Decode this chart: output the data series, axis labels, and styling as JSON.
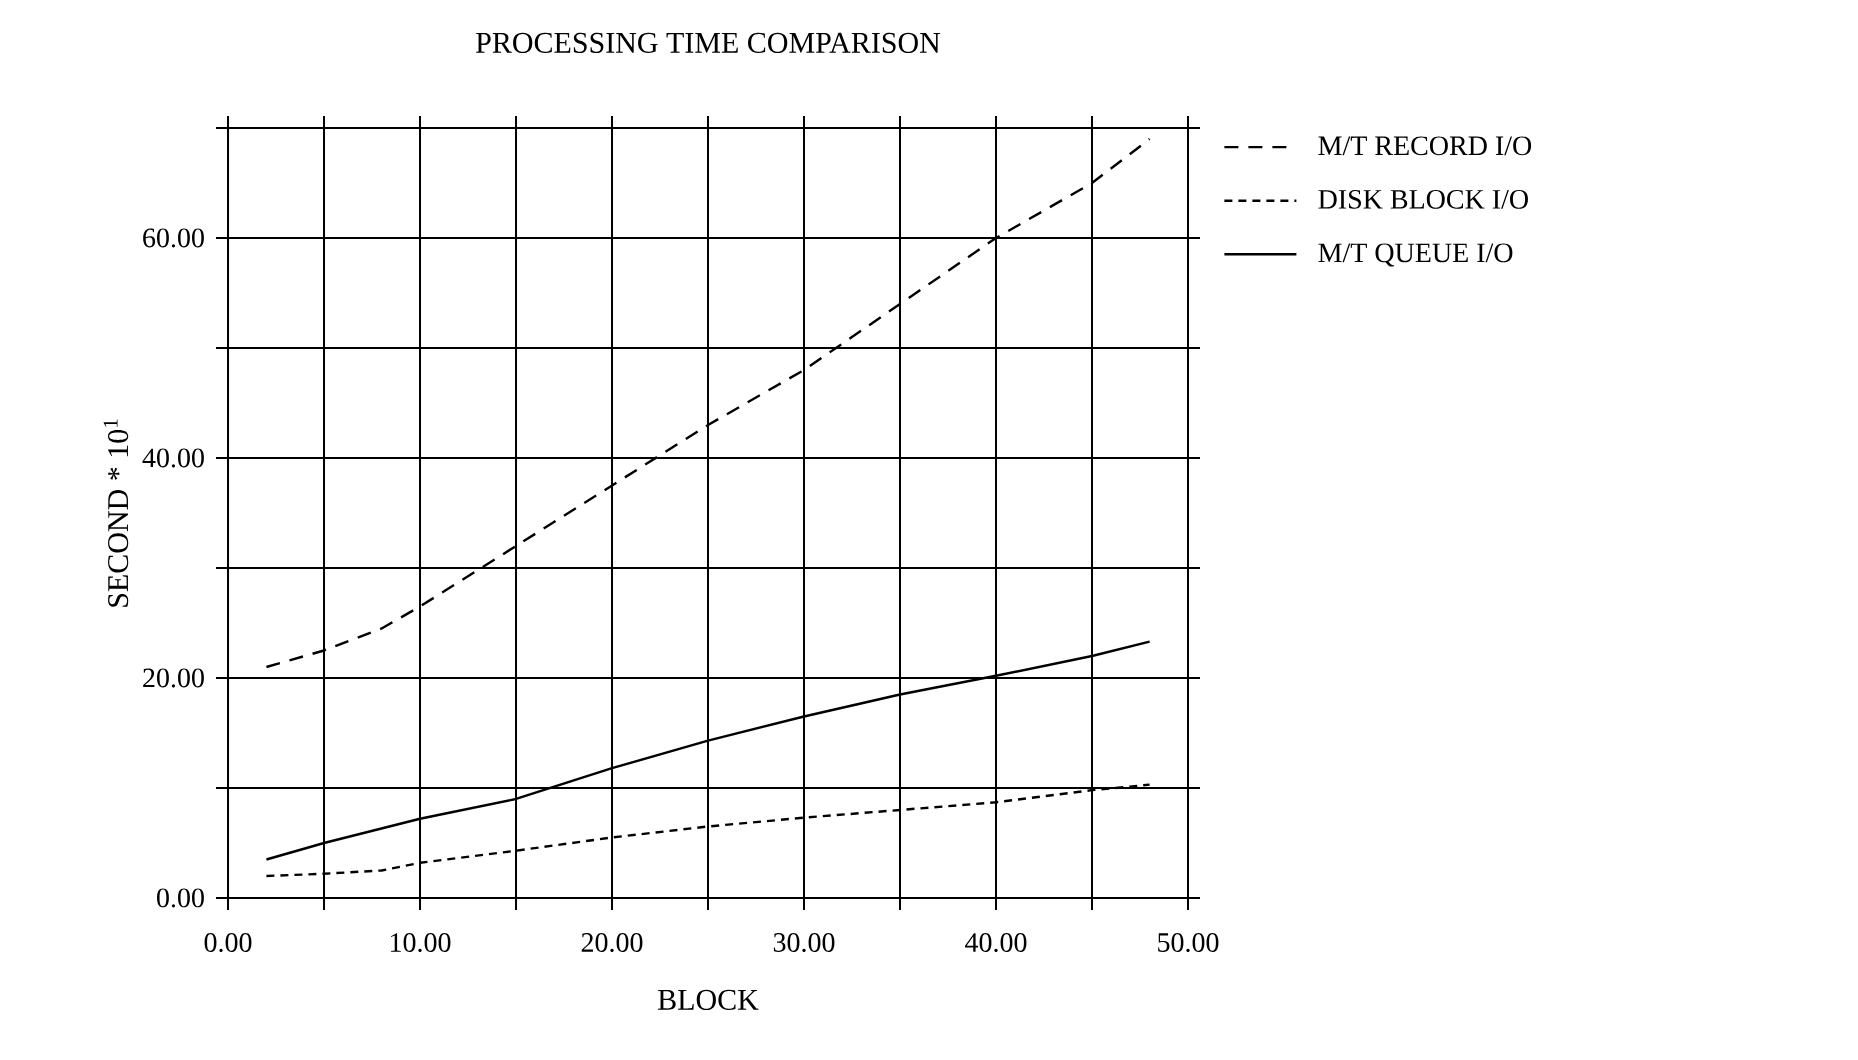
{
  "chart_data": {
    "type": "line",
    "title": "PROCESSING TIME COMPARISON",
    "xlabel": "BLOCK",
    "ylabel": "SECOND * 10$^{1}$",
    "xlim": [
      0,
      50
    ],
    "ylim": [
      0,
      70
    ],
    "xticks": [
      {
        "value": 0,
        "label": "0.00"
      },
      {
        "value": 5,
        "label": null
      },
      {
        "value": 10,
        "label": "10.00"
      },
      {
        "value": 15,
        "label": null
      },
      {
        "value": 20,
        "label": "20.00"
      },
      {
        "value": 25,
        "label": null
      },
      {
        "value": 30,
        "label": "30.00"
      },
      {
        "value": 35,
        "label": null
      },
      {
        "value": 40,
        "label": "40.00"
      },
      {
        "value": 45,
        "label": null
      },
      {
        "value": 50,
        "label": "50.00"
      }
    ],
    "yticks": [
      {
        "value": 0,
        "label": "0.00"
      },
      {
        "value": 10,
        "label": null
      },
      {
        "value": 20,
        "label": "20.00"
      },
      {
        "value": 30,
        "label": null
      },
      {
        "value": 40,
        "label": "40.00"
      },
      {
        "value": 50,
        "label": null
      },
      {
        "value": 60,
        "label": "60.00"
      },
      {
        "value": 70,
        "label": null
      }
    ],
    "grid": true,
    "legend": "right",
    "series": [
      {
        "name": "M/T RECORD I/O",
        "color": "#000000",
        "line_style": "dashed",
        "x": [
          2,
          5,
          8,
          10,
          15,
          20,
          25,
          30,
          35,
          40,
          45,
          48
        ],
        "values": [
          21,
          22.5,
          24.5,
          26.5,
          32,
          37.5,
          43,
          48,
          54,
          60,
          65,
          69
        ]
      },
      {
        "name": "DISK BLOCK I/O",
        "color": "#000000",
        "line_style": "dotted",
        "x": [
          2,
          5,
          8,
          10,
          15,
          20,
          25,
          30,
          35,
          40,
          45,
          48
        ],
        "values": [
          2,
          2.2,
          2.5,
          3.2,
          4.3,
          5.5,
          6.5,
          7.3,
          8,
          8.7,
          9.8,
          10.3
        ]
      },
      {
        "name": "M/T QUEUE I/O",
        "color": "#000000",
        "line_style": "solid",
        "x": [
          2,
          5,
          10,
          15,
          20,
          25,
          30,
          35,
          40,
          45,
          48
        ],
        "values": [
          3.5,
          5,
          7.2,
          9,
          11.8,
          14.3,
          16.5,
          18.5,
          20.2,
          22,
          23.3
        ]
      }
    ]
  }
}
